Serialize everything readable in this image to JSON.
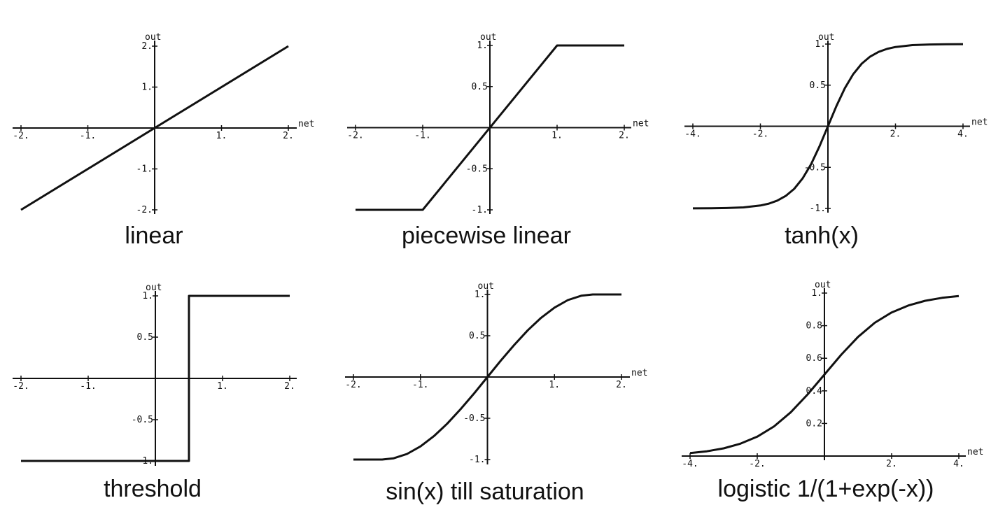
{
  "chart_data": [
    {
      "type": "line",
      "title": "linear",
      "xlabel": "net",
      "ylabel": "out",
      "xlim": [
        -2,
        2
      ],
      "ylim": [
        -2,
        2
      ],
      "xticks": [
        -2,
        -1,
        1,
        2
      ],
      "xtick_labels": [
        "-2.",
        "-1.",
        "1.",
        "2."
      ],
      "yticks": [
        -2,
        -1,
        1,
        2
      ],
      "ytick_labels": [
        "-2.",
        "-1.",
        "1.",
        "2."
      ],
      "series": [
        {
          "x": [
            -2,
            2
          ],
          "y": [
            -2,
            2
          ]
        }
      ]
    },
    {
      "type": "line",
      "title": "piecewise linear",
      "xlabel": "net",
      "ylabel": "out",
      "xlim": [
        -2,
        2
      ],
      "ylim": [
        -1,
        1
      ],
      "xticks": [
        -2,
        -1,
        1,
        2
      ],
      "xtick_labels": [
        "-2.",
        "-1.",
        "1.",
        "2."
      ],
      "yticks": [
        -1,
        -0.5,
        0.5,
        1
      ],
      "ytick_labels": [
        "-1.",
        "-0.5",
        "0.5",
        "1."
      ],
      "series": [
        {
          "x": [
            -2,
            -1,
            1,
            2
          ],
          "y": [
            -1,
            -1,
            1,
            1
          ]
        }
      ]
    },
    {
      "type": "line",
      "title": "tanh(x)",
      "xlabel": "net",
      "ylabel": "out",
      "xlim": [
        -4,
        4
      ],
      "ylim": [
        -1,
        1
      ],
      "xticks": [
        -4,
        -2,
        2,
        4
      ],
      "xtick_labels": [
        "-4.",
        "-2.",
        "2.",
        "4."
      ],
      "yticks": [
        -1,
        -0.5,
        0.5,
        1
      ],
      "ytick_labels": [
        "-1.",
        "-0.5",
        "0.5",
        "1."
      ],
      "series": [
        {
          "x": [
            -4,
            -3.5,
            -3,
            -2.5,
            -2,
            -1.75,
            -1.5,
            -1.25,
            -1,
            -0.75,
            -0.5,
            -0.25,
            0,
            0.25,
            0.5,
            0.75,
            1,
            1.25,
            1.5,
            1.75,
            2,
            2.5,
            3,
            3.5,
            4
          ],
          "y": [
            -0.999,
            -0.998,
            -0.995,
            -0.987,
            -0.964,
            -0.941,
            -0.905,
            -0.848,
            -0.762,
            -0.635,
            -0.462,
            -0.245,
            0,
            0.245,
            0.462,
            0.635,
            0.762,
            0.848,
            0.905,
            0.941,
            0.964,
            0.987,
            0.995,
            0.998,
            0.999
          ]
        }
      ]
    },
    {
      "type": "line",
      "title": "threshold",
      "xlabel": "",
      "ylabel": "out",
      "xlim": [
        -2,
        2
      ],
      "ylim": [
        -1,
        1
      ],
      "xticks": [
        -2,
        -1,
        1,
        2
      ],
      "xtick_labels": [
        "-2.",
        "-1.",
        "1.",
        "2."
      ],
      "yticks": [
        -1,
        -0.5,
        0.5,
        1
      ],
      "ytick_labels": [
        "-1.",
        "-0.5",
        "0.5",
        "1."
      ],
      "series": [
        {
          "x": [
            -2,
            0.5,
            0.5,
            2
          ],
          "y": [
            -1,
            -1,
            1,
            1
          ]
        }
      ]
    },
    {
      "type": "line",
      "title": "sin(x) till saturation",
      "xlabel": "net",
      "ylabel": "out",
      "xlim": [
        -2,
        2
      ],
      "ylim": [
        -1,
        1
      ],
      "xticks": [
        -2,
        -1,
        1,
        2
      ],
      "xtick_labels": [
        "-2.",
        "-1.",
        "1.",
        "2."
      ],
      "yticks": [
        -1,
        -0.5,
        0.5,
        1
      ],
      "ytick_labels": [
        "-1.",
        "-0.5",
        "0.5",
        "1."
      ],
      "series": [
        {
          "x": [
            -2,
            -1.5708,
            -1.4,
            -1.2,
            -1,
            -0.8,
            -0.6,
            -0.4,
            -0.2,
            0,
            0.2,
            0.4,
            0.6,
            0.8,
            1,
            1.2,
            1.4,
            1.5708,
            2
          ],
          "y": [
            -1,
            -1,
            -0.985,
            -0.932,
            -0.841,
            -0.717,
            -0.565,
            -0.389,
            -0.199,
            0,
            0.199,
            0.389,
            0.565,
            0.717,
            0.841,
            0.932,
            0.985,
            1,
            1
          ]
        }
      ]
    },
    {
      "type": "line",
      "title": "logistic 1/(1+exp(-x))",
      "xlabel": "net",
      "ylabel": "out",
      "xlim": [
        -4,
        4
      ],
      "ylim": [
        0,
        1
      ],
      "xticks": [
        -4,
        -2,
        2,
        4
      ],
      "xtick_labels": [
        "-4.",
        "-2.",
        "2.",
        "4."
      ],
      "yticks": [
        0.2,
        0.4,
        0.6,
        0.8,
        1
      ],
      "ytick_labels": [
        "0.2",
        "0.4",
        "0.6",
        "0.8",
        "1."
      ],
      "series": [
        {
          "x": [
            -4,
            -3.5,
            -3,
            -2.5,
            -2,
            -1.5,
            -1,
            -0.5,
            0,
            0.5,
            1,
            1.5,
            2,
            2.5,
            3,
            3.5,
            4
          ],
          "y": [
            0.018,
            0.029,
            0.047,
            0.076,
            0.119,
            0.182,
            0.269,
            0.378,
            0.5,
            0.622,
            0.731,
            0.818,
            0.881,
            0.924,
            0.953,
            0.971,
            0.982
          ]
        }
      ]
    }
  ]
}
